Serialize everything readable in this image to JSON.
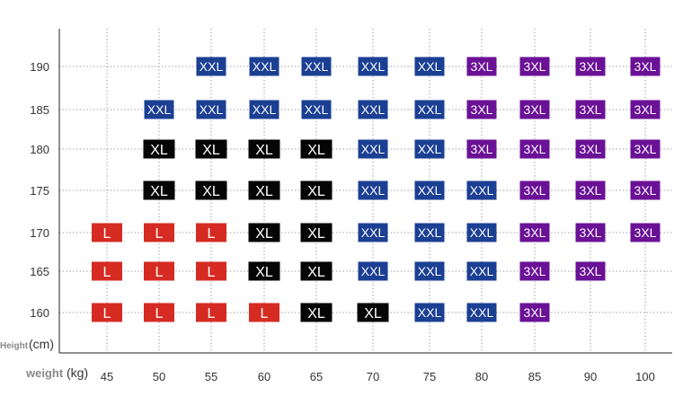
{
  "chart_data": {
    "type": "table",
    "x_ticks": [
      "45",
      "50",
      "55",
      "60",
      "65",
      "70",
      "75",
      "80",
      "85",
      "90",
      "100"
    ],
    "y_ticks": [
      "160",
      "165",
      "170",
      "175",
      "180",
      "185",
      "190"
    ],
    "xlabel_prefix": "weight",
    "xlabel_unit": "(kg)",
    "ylabel_prefix": "Height",
    "ylabel_unit": "(cm)",
    "grid": "dotted",
    "size_colors": {
      "L": "#d52b22",
      "XL": "#050505",
      "XXL": "#1b3f93",
      "3XL": "#6a1196"
    },
    "rows": [
      {
        "height": "190",
        "sizes": [
          "",
          "",
          "XXL",
          "XXL",
          "XXL",
          "XXL",
          "XXL",
          "3XL",
          "3XL",
          "3XL",
          "3XL"
        ]
      },
      {
        "height": "185",
        "sizes": [
          "",
          "XXL",
          "XXL",
          "XXL",
          "XXL",
          "XXL",
          "XXL",
          "3XL",
          "3XL",
          "3XL",
          "3XL"
        ]
      },
      {
        "height": "180",
        "sizes": [
          "",
          "XL",
          "XL",
          "XL",
          "XL",
          "XXL",
          "XXL",
          "3XL",
          "3XL",
          "3XL",
          "3XL"
        ]
      },
      {
        "height": "175",
        "sizes": [
          "",
          "XL",
          "XL",
          "XL",
          "XL",
          "XXL",
          "XXL",
          "XXL",
          "3XL",
          "3XL",
          "3XL"
        ]
      },
      {
        "height": "170",
        "sizes": [
          "L",
          "L",
          "L",
          "XL",
          "XL",
          "XXL",
          "XXL",
          "XXL",
          "3XL",
          "3XL",
          "3XL"
        ]
      },
      {
        "height": "165",
        "sizes": [
          "L",
          "L",
          "L",
          "XL",
          "XL",
          "XXL",
          "XXL",
          "XXL",
          "3XL",
          "3XL",
          ""
        ]
      },
      {
        "height": "160",
        "sizes": [
          "L",
          "L",
          "L",
          "L",
          "XL",
          "XL",
          "XXL",
          "XXL",
          "3XL",
          "",
          ""
        ]
      }
    ]
  }
}
